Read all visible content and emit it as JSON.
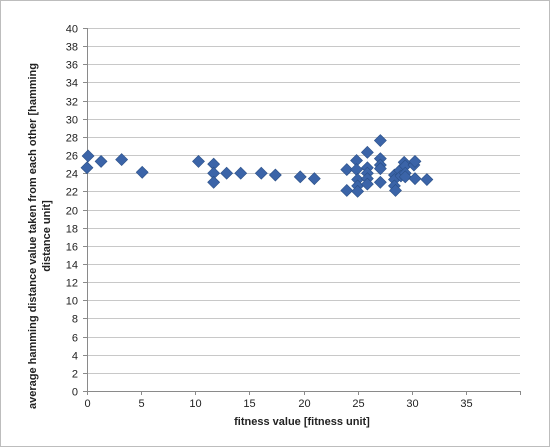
{
  "chart_data": {
    "type": "scatter",
    "title": "",
    "xlabel": "fitness value  [fitness unit]",
    "ylabel_lines": [
      "average hamming distance value taken from each other  [hamming",
      "distance unit]"
    ],
    "xlim": [
      0,
      40
    ],
    "ylim": [
      0,
      40
    ],
    "x_ticks": [
      0,
      5,
      10,
      15,
      20,
      25,
      30,
      35
    ],
    "y_ticks": [
      0,
      2,
      4,
      6,
      8,
      10,
      12,
      14,
      16,
      18,
      20,
      22,
      24,
      26,
      28,
      30,
      32,
      34,
      36,
      38,
      40
    ],
    "grid": "horizontal",
    "legend": "none",
    "marker": "diamond",
    "marker_color": "#3b64a8",
    "series": [
      {
        "points": [
          [
            0,
            24.6
          ],
          [
            0.1,
            25.9
          ],
          [
            1.3,
            25.3
          ],
          [
            3.2,
            25.5
          ],
          [
            5.1,
            24.1
          ],
          [
            10.3,
            25.3
          ],
          [
            11.7,
            25.0
          ],
          [
            11.7,
            24.0
          ],
          [
            11.7,
            23.0
          ],
          [
            12.9,
            24.0
          ],
          [
            14.2,
            24.0
          ],
          [
            16.1,
            24.0
          ],
          [
            17.4,
            23.8
          ],
          [
            19.7,
            23.6
          ],
          [
            21.0,
            23.4
          ],
          [
            24.0,
            24.4
          ],
          [
            24.0,
            22.1
          ],
          [
            24.9,
            25.4
          ],
          [
            24.9,
            24.4
          ],
          [
            25.0,
            23.3
          ],
          [
            25.0,
            22.6
          ],
          [
            25.0,
            22.0
          ],
          [
            25.9,
            26.3
          ],
          [
            25.9,
            24.6
          ],
          [
            25.9,
            24.0
          ],
          [
            25.9,
            23.4
          ],
          [
            25.9,
            22.8
          ],
          [
            27.1,
            27.6
          ],
          [
            27.1,
            25.6
          ],
          [
            27.1,
            24.9
          ],
          [
            27.1,
            24.5
          ],
          [
            27.1,
            23.0
          ],
          [
            28.4,
            23.8
          ],
          [
            28.4,
            23.3
          ],
          [
            28.4,
            22.6
          ],
          [
            28.5,
            22.1
          ],
          [
            28.9,
            24.3
          ],
          [
            29.0,
            23.7
          ],
          [
            29.3,
            25.2
          ],
          [
            29.4,
            24.8
          ],
          [
            29.4,
            24.0
          ],
          [
            29.4,
            23.6
          ],
          [
            30.2,
            24.9
          ],
          [
            30.3,
            25.3
          ],
          [
            30.3,
            23.4
          ],
          [
            31.4,
            23.3
          ]
        ]
      }
    ]
  }
}
